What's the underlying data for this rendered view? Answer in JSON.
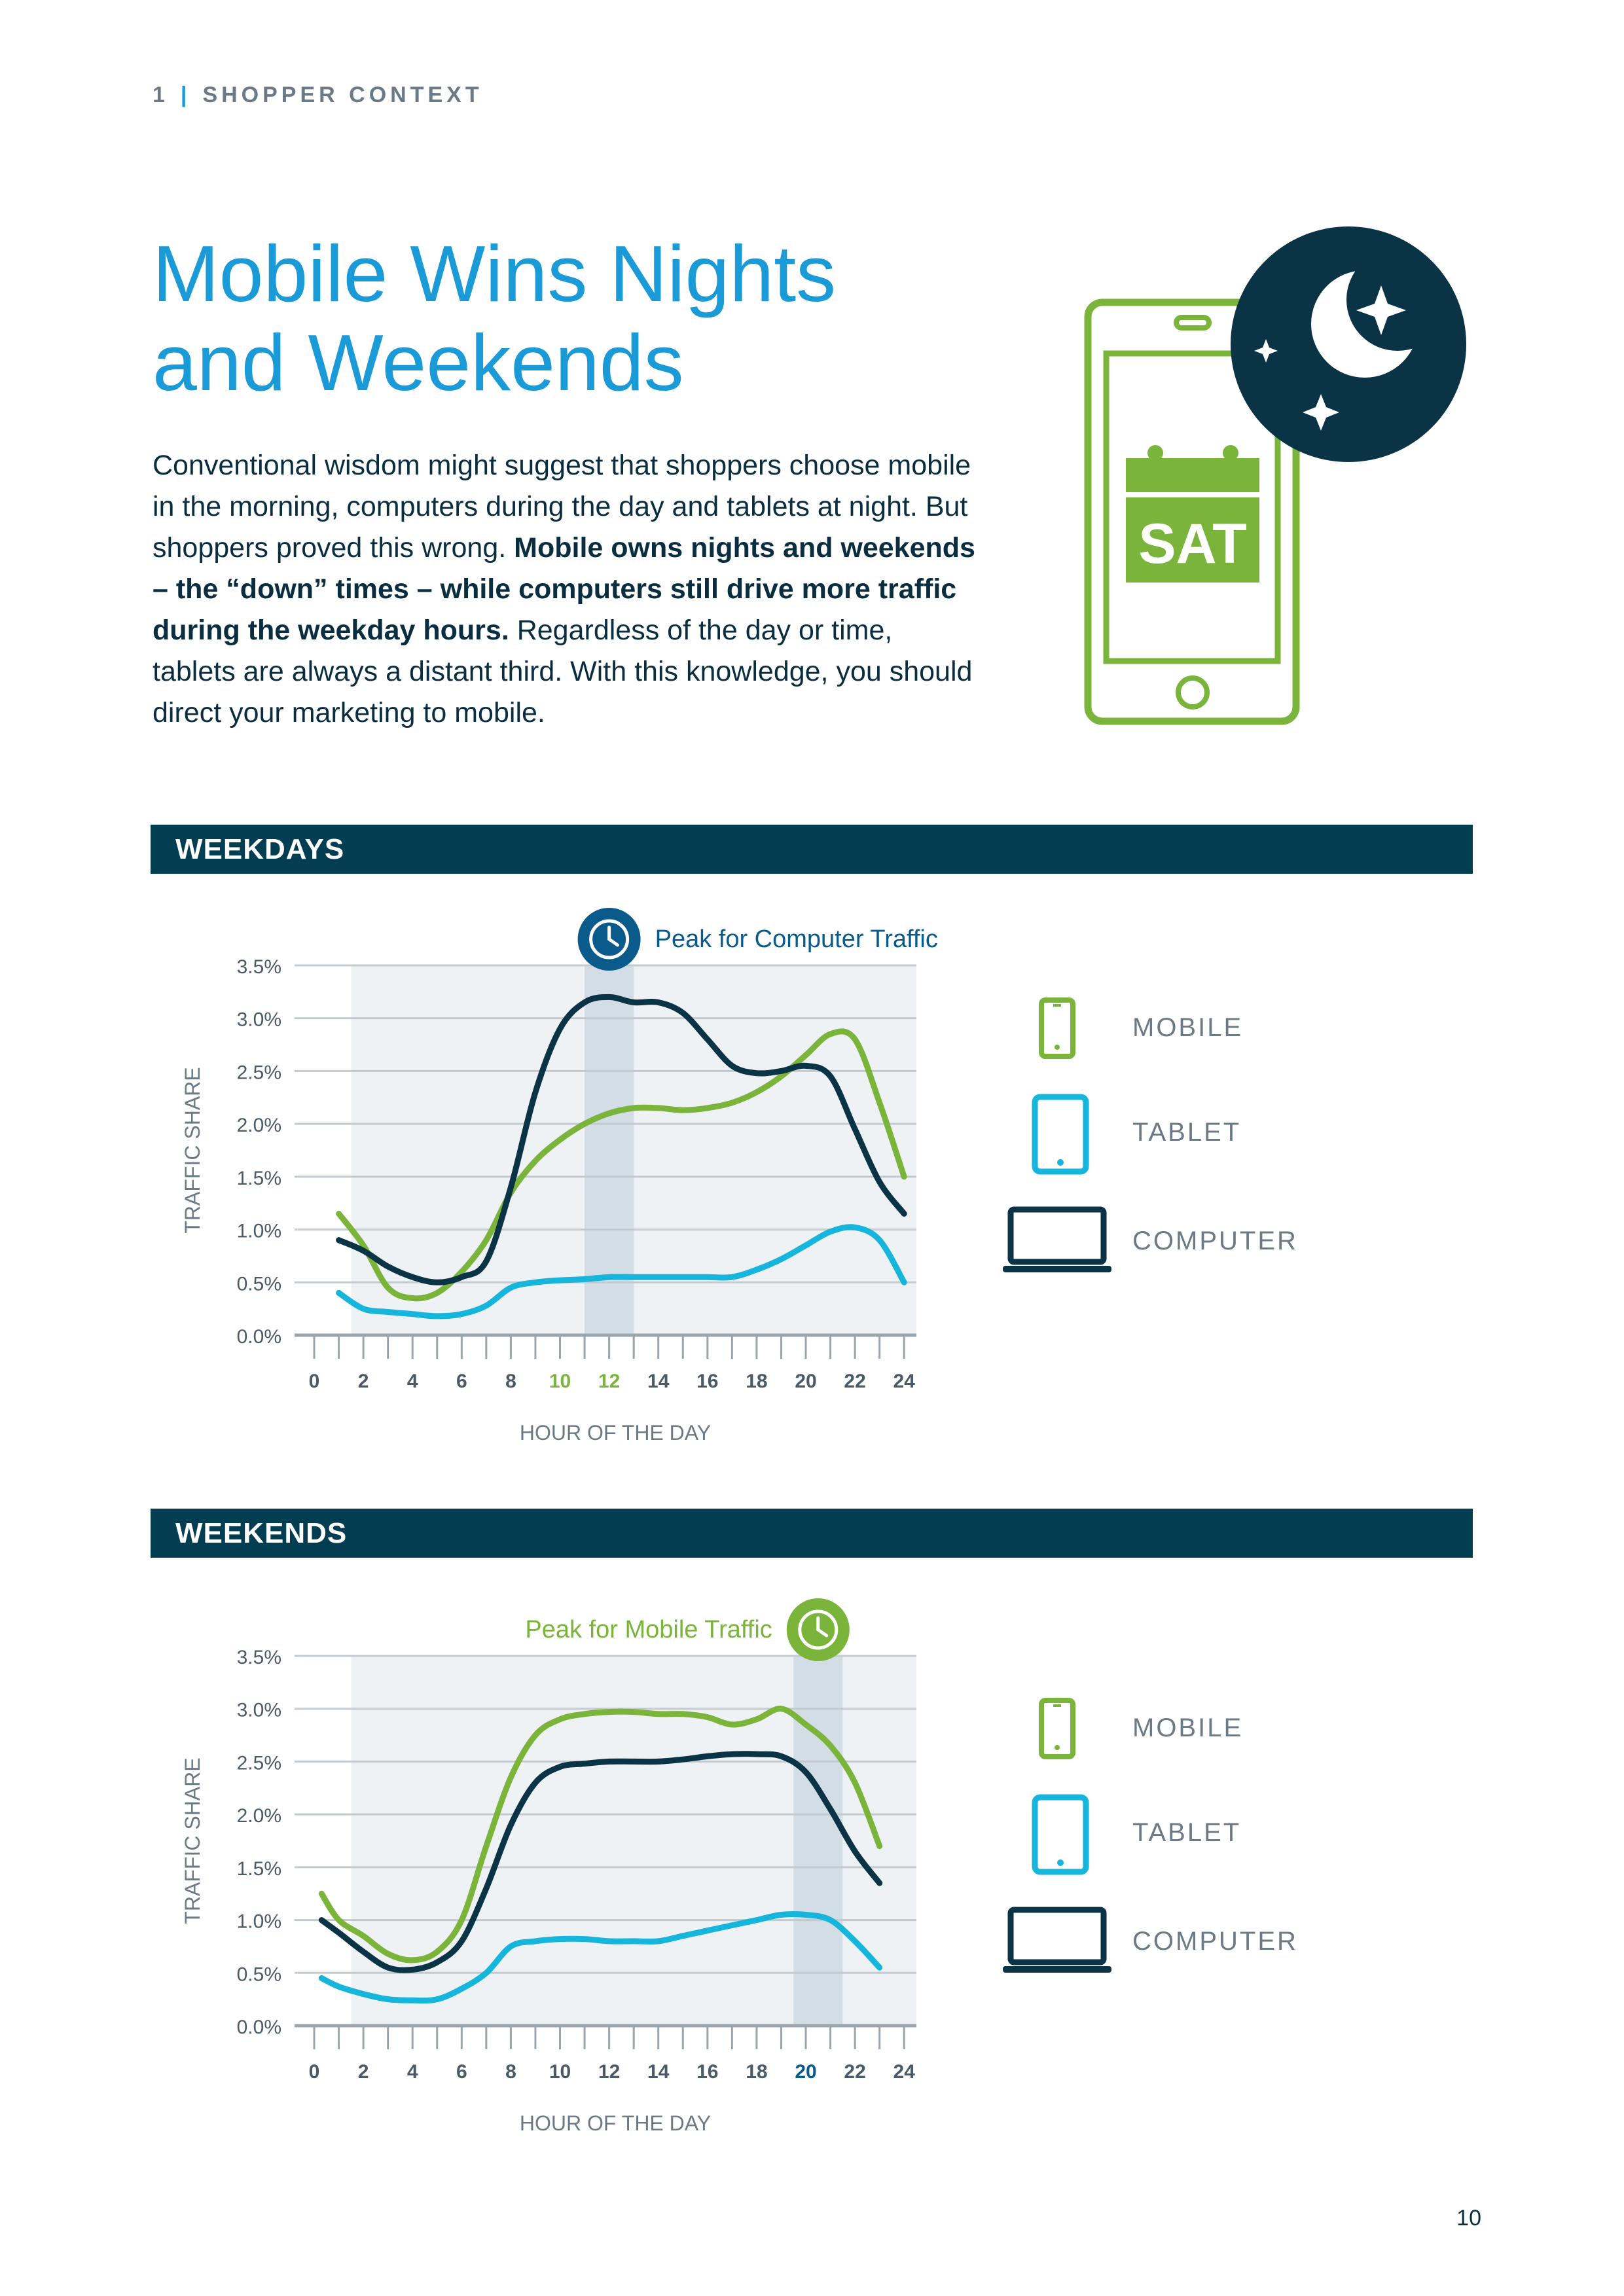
{
  "header": {
    "section_number": "1",
    "section_name": "SHOPPER CONTEXT"
  },
  "title_line1": "Mobile Wins Nights",
  "title_line2": "and Weekends",
  "intro": {
    "part1": "Conventional wisdom might suggest that shoppers choose mobile in the morning, computers during the day and tablets at night. But shoppers proved this wrong. ",
    "bold": "Mobile owns nights and weekends – the “down” times – while computers still drive more traffic during the weekday hours.",
    "part2": " Regardless of the day or time, tablets are always a distant third. With this knowledge, you should direct your marketing to mobile."
  },
  "illustration": {
    "calendar_text": "SAT"
  },
  "legend": {
    "mobile": "MOBILE",
    "tablet": "TABLET",
    "computer": "COMPUTER"
  },
  "colors": {
    "mobile": "#7bb43a",
    "tablet": "#16b5dc",
    "computer": "#0a3346",
    "title": "#1a9ad6",
    "band": "#033d52"
  },
  "page_number": "10",
  "chart_data": [
    {
      "type": "line",
      "section": "WEEKDAYS",
      "annotation": "Peak for Computer Traffic",
      "highlight_x": [
        11,
        13
      ],
      "highlighted_ticks": [
        "10",
        "12"
      ],
      "highlight_color": "#7bb43a",
      "xlabel": "HOUR OF THE DAY",
      "ylabel": "TRAFFIC SHARE",
      "xticks": [
        "0",
        "2",
        "4",
        "6",
        "8",
        "10",
        "12",
        "14",
        "16",
        "18",
        "20",
        "22",
        "24"
      ],
      "yticks": [
        "0.0%",
        "0.5%",
        "1.0%",
        "1.5%",
        "2.0%",
        "2.5%",
        "3.0%",
        "3.5%"
      ],
      "xlim": [
        0,
        24.5
      ],
      "ylim": [
        0,
        3.5
      ],
      "x": [
        1,
        2,
        3,
        4,
        5,
        6,
        7,
        8,
        9,
        10,
        11,
        12,
        13,
        14,
        15,
        16,
        17,
        18,
        19,
        20,
        21,
        22,
        23,
        24
      ],
      "series": [
        {
          "name": "MOBILE",
          "values": [
            1.15,
            0.85,
            0.45,
            0.35,
            0.4,
            0.6,
            0.9,
            1.35,
            1.65,
            1.85,
            2.0,
            2.1,
            2.15,
            2.15,
            2.13,
            2.15,
            2.2,
            2.3,
            2.45,
            2.65,
            2.85,
            2.8,
            2.2,
            1.5
          ]
        },
        {
          "name": "TABLET",
          "values": [
            0.4,
            0.25,
            0.22,
            0.2,
            0.18,
            0.2,
            0.28,
            0.45,
            0.5,
            0.52,
            0.53,
            0.55,
            0.55,
            0.55,
            0.55,
            0.55,
            0.55,
            0.62,
            0.72,
            0.85,
            0.98,
            1.02,
            0.9,
            0.5
          ]
        },
        {
          "name": "COMPUTER",
          "values": [
            0.9,
            0.8,
            0.65,
            0.55,
            0.5,
            0.55,
            0.7,
            1.4,
            2.3,
            2.9,
            3.15,
            3.2,
            3.15,
            3.15,
            3.05,
            2.8,
            2.55,
            2.48,
            2.5,
            2.55,
            2.45,
            1.95,
            1.45,
            1.15
          ]
        }
      ]
    },
    {
      "type": "line",
      "section": "WEEKENDS",
      "annotation": "Peak for Mobile Traffic",
      "highlight_x": [
        19.5,
        21.5
      ],
      "highlighted_ticks": [
        "20"
      ],
      "highlight_color": "#0a5a8c",
      "xlabel": "HOUR OF THE DAY",
      "ylabel": "TRAFFIC SHARE",
      "xticks": [
        "0",
        "2",
        "4",
        "6",
        "8",
        "10",
        "12",
        "14",
        "16",
        "18",
        "20",
        "22",
        "24"
      ],
      "yticks": [
        "0.0%",
        "0.5%",
        "1.0%",
        "1.5%",
        "2.0%",
        "2.5%",
        "3.0%",
        "3.5%"
      ],
      "xlim": [
        0,
        24.5
      ],
      "ylim": [
        0,
        3.5
      ],
      "x": [
        0.3,
        1,
        2,
        3,
        4,
        5,
        6,
        7,
        8,
        9,
        10,
        11,
        12,
        13,
        14,
        15,
        16,
        17,
        18,
        19,
        20,
        21,
        22,
        23
      ],
      "series": [
        {
          "name": "MOBILE",
          "values": [
            1.25,
            1.0,
            0.85,
            0.68,
            0.62,
            0.7,
            1.0,
            1.7,
            2.35,
            2.75,
            2.9,
            2.95,
            2.97,
            2.97,
            2.95,
            2.95,
            2.92,
            2.85,
            2.9,
            3.0,
            2.85,
            2.65,
            2.3,
            1.7
          ]
        },
        {
          "name": "TABLET",
          "values": [
            0.45,
            0.37,
            0.3,
            0.25,
            0.24,
            0.25,
            0.35,
            0.5,
            0.75,
            0.8,
            0.82,
            0.82,
            0.8,
            0.8,
            0.8,
            0.85,
            0.9,
            0.95,
            1.0,
            1.05,
            1.05,
            1.0,
            0.8,
            0.55
          ]
        },
        {
          "name": "COMPUTER",
          "values": [
            1.0,
            0.88,
            0.7,
            0.55,
            0.53,
            0.6,
            0.8,
            1.3,
            1.9,
            2.3,
            2.45,
            2.48,
            2.5,
            2.5,
            2.5,
            2.52,
            2.55,
            2.57,
            2.57,
            2.55,
            2.4,
            2.05,
            1.65,
            1.35
          ]
        }
      ]
    }
  ]
}
